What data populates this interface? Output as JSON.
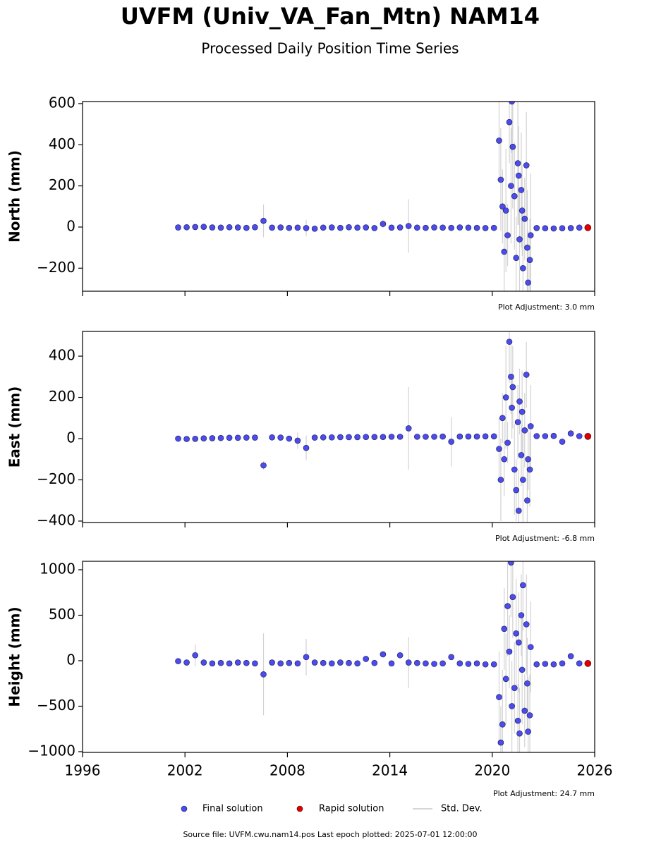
{
  "title": "UVFM (Univ_VA_Fan_Mtn) NAM14",
  "subtitle": "Processed Daily Position Time Series",
  "error_label": "Std. Dev.",
  "error_color": "#c8c8c8",
  "source": "Source file: UVFM.cwu.nam14.pos  Last epoch plotted: 2025-07-01 12:00:00",
  "chart_data": [
    {
      "type": "scatter",
      "ylabel": "North (mm)",
      "annotation": "Plot Adjustment: 3.0 mm",
      "xlim": [
        1996,
        2026
      ],
      "xticks": [
        1996,
        2002,
        2008,
        2014,
        2020,
        2026
      ],
      "ylim": [
        -312,
        610
      ],
      "yticks": [
        {
          "value": -200,
          "label": "−200"
        },
        0,
        200,
        400,
        600
      ],
      "series": [
        {
          "name": "Final solution",
          "color": "#4b4bee",
          "x": [
            2001.6,
            2002.1,
            2002.6,
            2003.1,
            2003.6,
            2004.1,
            2004.6,
            2005.1,
            2005.6,
            2006.1,
            2006.6,
            2007.1,
            2007.6,
            2008.1,
            2008.6,
            2009.1,
            2009.6,
            2010.1,
            2010.6,
            2011.1,
            2011.6,
            2012.1,
            2012.6,
            2013.1,
            2013.6,
            2014.1,
            2014.6,
            2015.1,
            2015.6,
            2016.1,
            2016.6,
            2017.1,
            2017.6,
            2018.1,
            2018.6,
            2019.1,
            2019.6,
            2020.1,
            2022.6,
            2023.1,
            2023.6,
            2024.1,
            2024.6,
            2025.1,
            2020.4,
            2020.5,
            2020.6,
            2020.7,
            2020.8,
            2020.9,
            2021.0,
            2021.1,
            2021.15,
            2021.2,
            2021.3,
            2021.4,
            2021.5,
            2021.55,
            2021.6,
            2021.7,
            2021.75,
            2021.8,
            2021.9,
            2022.0,
            2022.05,
            2022.1,
            2022.2,
            2022.25
          ],
          "values": [
            -2,
            -1,
            0,
            1,
            -2,
            -3,
            -1,
            -2,
            -4,
            -1,
            30,
            -3,
            -2,
            -4,
            -3,
            -5,
            -8,
            -3,
            -2,
            -4,
            -1,
            -3,
            -2,
            -5,
            15,
            -3,
            -2,
            5,
            -3,
            -4,
            -2,
            -3,
            -4,
            -2,
            -3,
            -4,
            -5,
            -4,
            -5,
            -6,
            -7,
            -6,
            -5,
            -3,
            420,
            230,
            100,
            -120,
            80,
            -40,
            510,
            200,
            610,
            390,
            150,
            -150,
            310,
            250,
            -60,
            180,
            80,
            -200,
            40,
            300,
            -100,
            -270,
            -160,
            -40
          ],
          "errors": [
            5,
            5,
            5,
            5,
            5,
            5,
            5,
            5,
            5,
            5,
            80,
            5,
            5,
            5,
            5,
            40,
            5,
            5,
            5,
            5,
            5,
            5,
            5,
            5,
            20,
            5,
            5,
            130,
            5,
            5,
            5,
            5,
            5,
            5,
            5,
            5,
            5,
            5,
            5,
            5,
            5,
            5,
            5,
            5,
            200,
            250,
            180,
            220,
            300,
            150,
            200,
            280,
            250,
            300,
            260,
            200,
            300,
            240,
            250,
            280,
            220,
            300,
            200,
            260,
            280,
            250,
            200,
            300
          ]
        },
        {
          "name": "Rapid solution",
          "color": "#e00000",
          "x": [
            2025.6
          ],
          "values": [
            -3
          ]
        }
      ]
    },
    {
      "type": "scatter",
      "ylabel": "East (mm)",
      "annotation": "Plot Adjustment: -6.8 mm",
      "xlim": [
        1996,
        2026
      ],
      "xticks": [
        1996,
        2002,
        2008,
        2014,
        2020,
        2026
      ],
      "ylim": [
        -407,
        520
      ],
      "yticks": [
        {
          "value": -400,
          "label": "−400"
        },
        {
          "value": -200,
          "label": "−200"
        },
        0,
        200,
        400
      ],
      "series": [
        {
          "color": "#4b4bee",
          "x": [
            2001.6,
            2002.1,
            2002.6,
            2003.1,
            2003.6,
            2004.1,
            2004.6,
            2005.1,
            2005.6,
            2006.1,
            2006.6,
            2007.1,
            2007.6,
            2008.1,
            2008.6,
            2009.1,
            2009.6,
            2010.1,
            2010.6,
            2011.1,
            2011.6,
            2012.1,
            2012.6,
            2013.1,
            2013.6,
            2014.1,
            2014.6,
            2015.1,
            2015.6,
            2016.1,
            2016.6,
            2017.1,
            2017.6,
            2018.1,
            2018.6,
            2019.1,
            2019.6,
            2020.1,
            2022.6,
            2023.1,
            2023.6,
            2024.1,
            2024.6,
            2025.1,
            2020.4,
            2020.5,
            2020.6,
            2020.7,
            2020.8,
            2020.9,
            2021.0,
            2021.1,
            2021.15,
            2021.2,
            2021.3,
            2021.4,
            2021.5,
            2021.55,
            2021.6,
            2021.7,
            2021.75,
            2021.8,
            2021.9,
            2022.0,
            2022.05,
            2022.1,
            2022.2,
            2022.25
          ],
          "values": [
            0,
            -2,
            -1,
            1,
            2,
            3,
            4,
            4,
            5,
            5,
            -130,
            6,
            5,
            0,
            -10,
            -45,
            5,
            6,
            6,
            7,
            7,
            7,
            8,
            8,
            8,
            9,
            9,
            50,
            9,
            9,
            9,
            10,
            -15,
            10,
            10,
            10,
            11,
            11,
            12,
            12,
            13,
            -15,
            25,
            12,
            -50,
            -200,
            100,
            -100,
            200,
            -20,
            470,
            300,
            150,
            250,
            -150,
            -250,
            80,
            -350,
            180,
            -80,
            130,
            -200,
            40,
            310,
            -300,
            -100,
            -150,
            60
          ],
          "errors": [
            5,
            5,
            5,
            5,
            5,
            5,
            5,
            5,
            5,
            5,
            20,
            5,
            5,
            5,
            40,
            60,
            5,
            5,
            5,
            5,
            5,
            5,
            5,
            5,
            5,
            5,
            5,
            200,
            5,
            5,
            5,
            5,
            120,
            5,
            5,
            5,
            5,
            5,
            5,
            5,
            5,
            5,
            5,
            5,
            150,
            200,
            120,
            180,
            250,
            100,
            200,
            180,
            150,
            200,
            220,
            150,
            180,
            200,
            160,
            150,
            200,
            220,
            180,
            160,
            200,
            150,
            180,
            200
          ]
        },
        {
          "color": "#e00000",
          "x": [
            2025.6
          ],
          "values": [
            11
          ]
        }
      ]
    },
    {
      "type": "scatter",
      "ylabel": "Height (mm)",
      "annotation": "Plot Adjustment: 24.7 mm",
      "xlim": [
        1996,
        2026
      ],
      "xticks": [
        1996,
        2002,
        2008,
        2014,
        2020,
        2026
      ],
      "ylim": [
        -1008,
        1093
      ],
      "yticks": [
        {
          "value": -1000,
          "label": "−1000"
        },
        {
          "value": -500,
          "label": "−500"
        },
        0,
        500,
        1000
      ],
      "series": [
        {
          "color": "#4b4bee",
          "x": [
            2001.6,
            2002.1,
            2002.6,
            2003.1,
            2003.6,
            2004.1,
            2004.6,
            2005.1,
            2005.6,
            2006.1,
            2006.6,
            2007.1,
            2007.6,
            2008.1,
            2008.6,
            2009.1,
            2009.6,
            2010.1,
            2010.6,
            2011.1,
            2011.6,
            2012.1,
            2012.6,
            2013.1,
            2013.6,
            2014.1,
            2014.6,
            2015.1,
            2015.6,
            2016.1,
            2016.6,
            2017.1,
            2017.6,
            2018.1,
            2018.6,
            2019.1,
            2019.6,
            2020.1,
            2022.6,
            2023.1,
            2023.6,
            2024.1,
            2024.6,
            2025.1,
            2020.4,
            2020.5,
            2020.6,
            2020.7,
            2020.8,
            2020.9,
            2021.0,
            2021.1,
            2021.15,
            2021.2,
            2021.3,
            2021.4,
            2021.5,
            2021.55,
            2021.6,
            2021.7,
            2021.75,
            2021.8,
            2021.9,
            2022.0,
            2022.05,
            2022.1,
            2022.2,
            2022.25
          ],
          "values": [
            -5,
            -20,
            60,
            -20,
            -30,
            -25,
            -30,
            -20,
            -25,
            -30,
            -150,
            -20,
            -30,
            -25,
            -30,
            40,
            -20,
            -25,
            -30,
            -20,
            -25,
            -30,
            20,
            -25,
            70,
            -30,
            60,
            -20,
            -25,
            -30,
            -35,
            -30,
            40,
            -30,
            -35,
            -30,
            -40,
            -40,
            -40,
            -35,
            -40,
            -30,
            50,
            -30,
            -400,
            -900,
            -700,
            350,
            -200,
            600,
            100,
            1080,
            -500,
            700,
            -300,
            300,
            -660,
            200,
            -800,
            500,
            -100,
            830,
            -550,
            400,
            -250,
            -780,
            -600,
            150
          ],
          "errors": [
            20,
            20,
            120,
            20,
            20,
            20,
            20,
            20,
            20,
            20,
            450,
            20,
            20,
            20,
            20,
            200,
            20,
            20,
            20,
            20,
            20,
            20,
            20,
            20,
            20,
            20,
            20,
            280,
            20,
            20,
            20,
            20,
            20,
            20,
            20,
            20,
            20,
            20,
            20,
            20,
            20,
            20,
            20,
            20,
            500,
            400,
            600,
            450,
            500,
            550,
            400,
            600,
            500,
            450,
            500,
            600,
            400,
            550,
            500,
            450,
            600,
            500,
            400,
            550,
            500,
            600,
            450,
            500
          ]
        },
        {
          "color": "#e00000",
          "x": [
            2025.6
          ],
          "values": [
            -30
          ]
        }
      ]
    }
  ]
}
